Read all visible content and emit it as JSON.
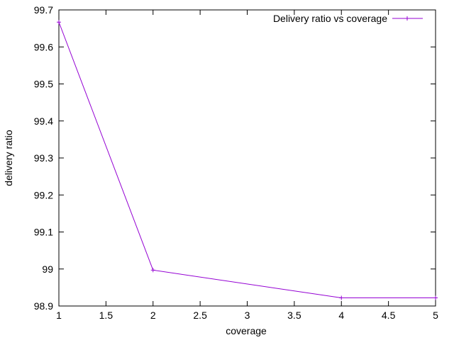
{
  "chart_data": {
    "type": "line",
    "title": "",
    "xlabel": "coverage",
    "ylabel": "delivery ratio",
    "xlim": [
      1,
      5
    ],
    "ylim": [
      98.9,
      99.7
    ],
    "xticks": [
      "1",
      "1.5",
      "2",
      "2.5",
      "3",
      "3.5",
      "4",
      "4.5",
      "5"
    ],
    "yticks": [
      "98.9",
      "99",
      "99.1",
      "99.2",
      "99.3",
      "99.4",
      "99.5",
      "99.6",
      "99.7"
    ],
    "grid": false,
    "legend_position": "top-right",
    "series": [
      {
        "name": "Delivery ratio vs coverage",
        "color": "#9400d3",
        "marker": "plus",
        "x": [
          1,
          2,
          4,
          5
        ],
        "y": [
          99.667,
          98.997,
          98.922,
          98.922
        ]
      }
    ]
  }
}
